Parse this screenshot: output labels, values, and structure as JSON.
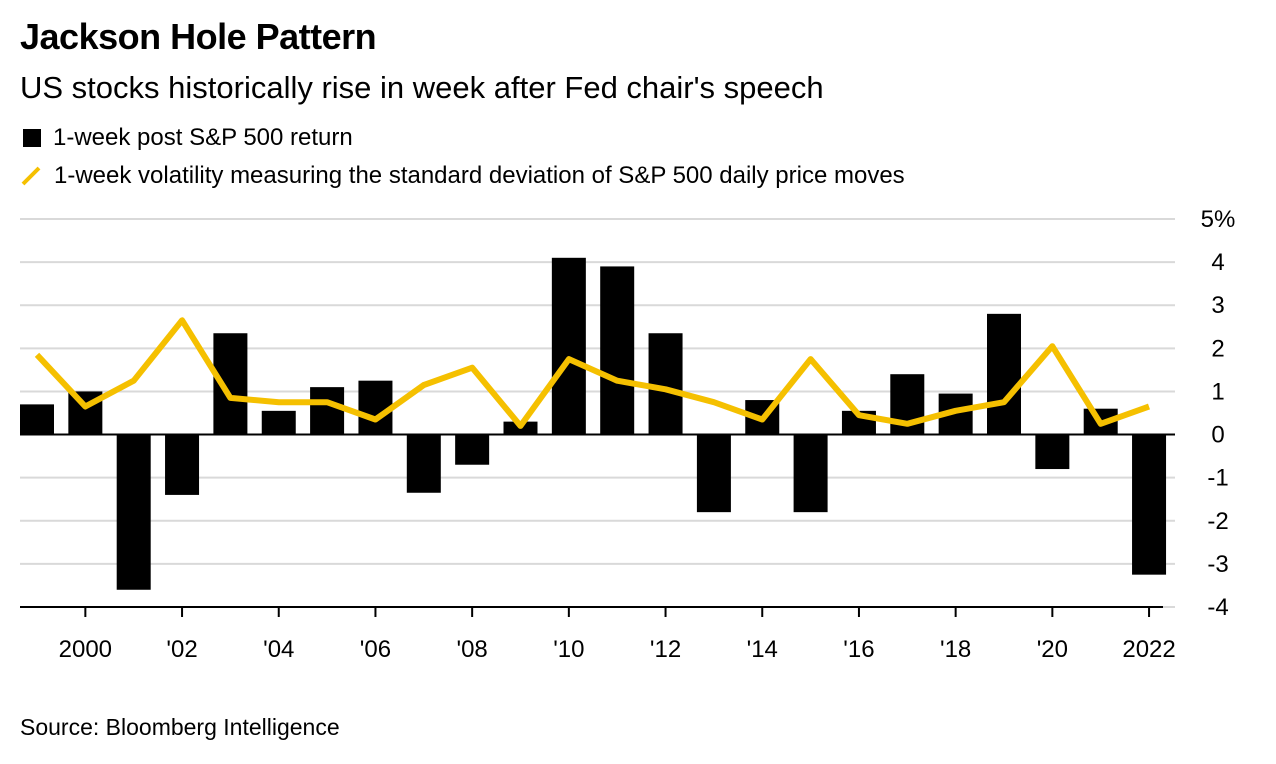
{
  "header": {
    "title": "Jackson Hole Pattern",
    "subtitle": "US stocks historically rise in week after Fed chair's speech"
  },
  "legend": {
    "bar_label": "1-week post S&P 500 return",
    "line_label": "1-week volatility measuring the standard deviation of S&P 500 daily price moves"
  },
  "source": "Source: Bloomberg Intelligence",
  "colors": {
    "bar": "#000000",
    "line": "#f5c000",
    "grid": "#d9d9d9",
    "axis": "#000000"
  },
  "chart_data": {
    "type": "bar",
    "x": [
      1999,
      2000,
      2001,
      2002,
      2003,
      2004,
      2005,
      2006,
      2007,
      2008,
      2009,
      2010,
      2011,
      2012,
      2013,
      2014,
      2015,
      2016,
      2017,
      2018,
      2019,
      2020,
      2021,
      2022
    ],
    "series": [
      {
        "name": "1-week post S&P 500 return",
        "type": "bar",
        "values": [
          0.7,
          1.0,
          -3.6,
          -1.4,
          2.35,
          0.55,
          1.1,
          1.25,
          -1.35,
          -0.7,
          0.3,
          4.1,
          3.9,
          2.35,
          -1.8,
          0.8,
          -1.8,
          0.55,
          1.4,
          0.95,
          2.8,
          -0.8,
          0.6,
          -3.25
        ]
      },
      {
        "name": "1-week volatility measuring the standard deviation of S&P 500 daily price moves",
        "type": "line",
        "values": [
          1.85,
          0.65,
          1.25,
          2.65,
          0.85,
          0.75,
          0.75,
          0.35,
          1.15,
          1.55,
          0.2,
          1.75,
          1.25,
          1.05,
          0.75,
          0.35,
          1.75,
          0.45,
          0.25,
          0.55,
          0.75,
          2.05,
          0.25,
          0.65
        ]
      }
    ],
    "xtick_labels": [
      {
        "x": 2000,
        "label": "2000"
      },
      {
        "x": 2002,
        "label": "'02"
      },
      {
        "x": 2004,
        "label": "'04"
      },
      {
        "x": 2006,
        "label": "'06"
      },
      {
        "x": 2008,
        "label": "'08"
      },
      {
        "x": 2010,
        "label": "'10"
      },
      {
        "x": 2012,
        "label": "'12"
      },
      {
        "x": 2014,
        "label": "'14"
      },
      {
        "x": 2016,
        "label": "'16"
      },
      {
        "x": 2018,
        "label": "'18"
      },
      {
        "x": 2020,
        "label": "'20"
      },
      {
        "x": 2022,
        "label": "2022"
      }
    ],
    "yticks": [
      5,
      4,
      3,
      2,
      1,
      0,
      -1,
      -2,
      -3,
      -4
    ],
    "ytick_labels": [
      "5%",
      "4",
      "3",
      "2",
      "1",
      "0",
      "-1",
      "-2",
      "-3",
      "-4"
    ],
    "ylim": [
      -4,
      5
    ],
    "grid": true,
    "y_axis_side": "right",
    "legend_position": "top-left"
  }
}
